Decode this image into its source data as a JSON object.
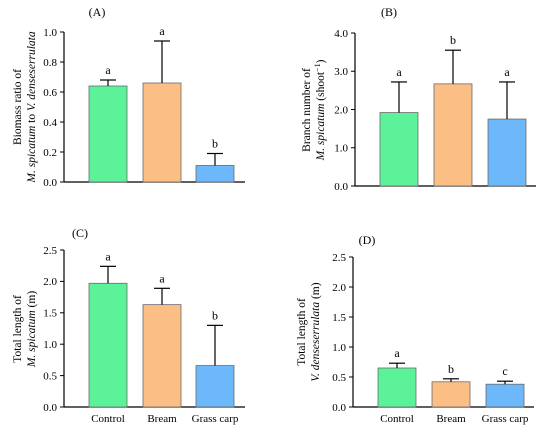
{
  "chart_data": [
    {
      "panel": "(A)",
      "type": "bar",
      "categories": [
        "Control",
        "Bream",
        "Grass carp"
      ],
      "values": [
        0.64,
        0.66,
        0.11
      ],
      "errors": [
        0.04,
        0.28,
        0.08
      ],
      "significance": [
        "a",
        "a",
        "b"
      ],
      "ylabel_lines": [
        [
          {
            "text": "Biomass ratio of",
            "italic": false
          }
        ],
        [
          {
            "text": "M. spicatum",
            "italic": true
          },
          {
            "text": "  to ",
            "italic": false
          },
          {
            "text": "V. denseserrulata",
            "italic": true
          }
        ]
      ],
      "ylim": [
        0,
        1.0
      ],
      "yticks": [
        "0.0",
        "0.2",
        "0.4",
        "0.6",
        "0.8",
        "1.0"
      ],
      "show_xticklabels": false,
      "colors": [
        "#5cf29a",
        "#fbbf86",
        "#6cb8fb"
      ]
    },
    {
      "panel": "(B)",
      "type": "bar",
      "categories": [
        "Control",
        "Bream",
        "Grass carp"
      ],
      "values": [
        1.92,
        2.67,
        1.75
      ],
      "errors": [
        0.8,
        0.88,
        0.97
      ],
      "significance": [
        "a",
        "b",
        "a"
      ],
      "ylabel_lines": [
        [
          {
            "text": "Branch number of",
            "italic": false
          }
        ],
        [
          {
            "text": "M. spicatum",
            "italic": true
          },
          {
            "text": " (shoot",
            "italic": false
          },
          {
            "text": "−1",
            "italic": false,
            "sup": true
          },
          {
            "text": ")",
            "italic": false
          }
        ]
      ],
      "ylim": [
        0,
        4.0
      ],
      "yticks": [
        "0.0",
        "1.0",
        "2.0",
        "3.0",
        "4.0"
      ],
      "show_xticklabels": false,
      "colors": [
        "#5cf29a",
        "#fbbf86",
        "#6cb8fb"
      ]
    },
    {
      "panel": "(C)",
      "type": "bar",
      "categories": [
        "Control",
        "Bream",
        "Grass carp"
      ],
      "values": [
        1.97,
        1.63,
        0.66
      ],
      "errors": [
        0.27,
        0.26,
        0.64
      ],
      "significance": [
        "a",
        "a",
        "b"
      ],
      "ylabel_lines": [
        [
          {
            "text": "Total length of",
            "italic": false
          }
        ],
        [
          {
            "text": "M. spicatum",
            "italic": true
          },
          {
            "text": " (m)",
            "italic": false
          }
        ]
      ],
      "ylim": [
        0,
        2.5
      ],
      "yticks": [
        "0.0",
        "0.5",
        "1.0",
        "1.5",
        "2.0",
        "2.5"
      ],
      "show_xticklabels": true,
      "colors": [
        "#5cf29a",
        "#fbbf86",
        "#6cb8fb"
      ]
    },
    {
      "panel": "(D)",
      "type": "bar",
      "categories": [
        "Control",
        "Bream",
        "Grass carp"
      ],
      "values": [
        0.65,
        0.42,
        0.38
      ],
      "errors": [
        0.08,
        0.05,
        0.05
      ],
      "significance": [
        "a",
        "b",
        "c"
      ],
      "ylabel_lines": [
        [
          {
            "text": "Total length of",
            "italic": false
          }
        ],
        [
          {
            "text": "V. denseserrulata",
            "italic": true
          },
          {
            "text": " (m)",
            "italic": false
          }
        ]
      ],
      "ylim": [
        0,
        2.5
      ],
      "yticks": [
        "0.0",
        "0.5",
        "1.0",
        "1.5",
        "2.0",
        "2.5"
      ],
      "show_xticklabels": true,
      "colors": [
        "#5cf29a",
        "#fbbf86",
        "#6cb8fb"
      ]
    }
  ]
}
